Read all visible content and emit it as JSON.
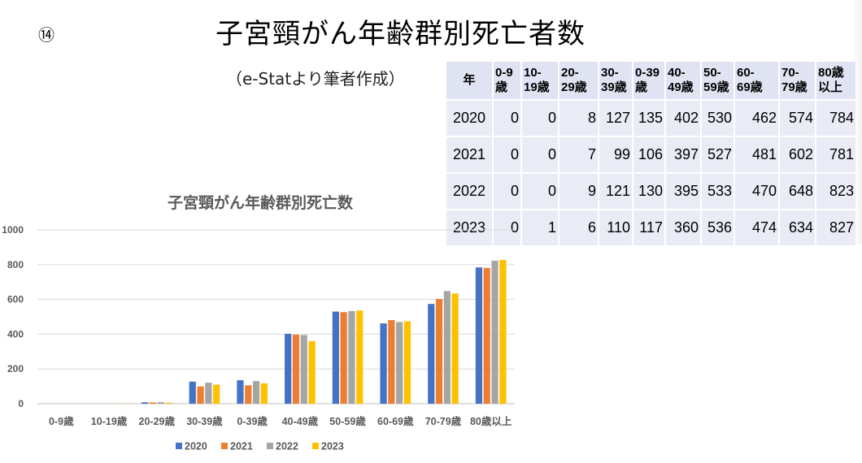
{
  "slide": {
    "number": "⑭",
    "title": "子宮頸がん年齢群別死亡者数",
    "source": "（e-Statより筆者作成）"
  },
  "table": {
    "headers": [
      "年",
      "0-9\n歳",
      "10-\n19歳",
      "20-\n29歳",
      "30-\n39歳",
      "0-39\n歳",
      "40-\n49歳",
      "50-\n59歳",
      "60-\n69歳",
      "70-\n79歳",
      "80歳\n以上"
    ],
    "rows": [
      [
        "2020",
        "0",
        "0",
        "8",
        "127",
        "135",
        "402",
        "530",
        "462",
        "574",
        "784"
      ],
      [
        "2021",
        "0",
        "0",
        "7",
        "99",
        "106",
        "397",
        "527",
        "481",
        "602",
        "781"
      ],
      [
        "2022",
        "0",
        "0",
        "9",
        "121",
        "130",
        "395",
        "533",
        "470",
        "648",
        "823"
      ],
      [
        "2023",
        "0",
        "1",
        "6",
        "110",
        "117",
        "360",
        "536",
        "474",
        "634",
        "827"
      ]
    ]
  },
  "chart_data": {
    "type": "bar",
    "title": "子宮頸がん年齢群別死亡数",
    "categories": [
      "0-9歳",
      "10-19歳",
      "20-29歳",
      "30-39歳",
      "0-39歳",
      "40-49歳",
      "50-59歳",
      "60-69歳",
      "70-79歳",
      "80歳以上"
    ],
    "series": [
      {
        "name": "2020",
        "color": "#4472c4",
        "values": [
          0,
          0,
          8,
          127,
          135,
          402,
          530,
          462,
          574,
          784
        ]
      },
      {
        "name": "2021",
        "color": "#ed7d31",
        "values": [
          0,
          0,
          7,
          99,
          106,
          397,
          527,
          481,
          602,
          781
        ]
      },
      {
        "name": "2022",
        "color": "#a5a5a5",
        "values": [
          0,
          0,
          9,
          121,
          130,
          395,
          533,
          470,
          648,
          823
        ]
      },
      {
        "name": "2023",
        "color": "#ffc000",
        "values": [
          0,
          1,
          6,
          110,
          117,
          360,
          536,
          474,
          634,
          827
        ]
      }
    ],
    "ylim": [
      0,
      1000
    ],
    "yticks": [
      "0",
      "200",
      "400",
      "600",
      "800",
      "1000"
    ],
    "grid": true,
    "legend": "bottom"
  }
}
